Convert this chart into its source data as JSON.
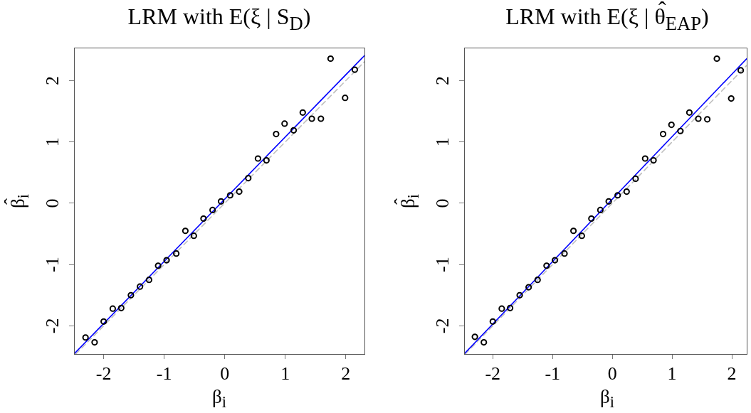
{
  "chart_data": [
    {
      "type": "scatter",
      "title": "LRM with E(ξ | S$_{D}$)",
      "xlabel": "β$_{i}$",
      "ylabel": "β̂$_{i}$",
      "xlim": [
        -2.49,
        2.31
      ],
      "ylim": [
        -2.46,
        2.54
      ],
      "xticks": [
        -2,
        -1,
        0,
        1,
        2
      ],
      "yticks": [
        -2,
        -1,
        0,
        1,
        2
      ],
      "grid": false,
      "legend": false,
      "x": [
        -2.3,
        -2.15,
        -2.0,
        -1.85,
        -1.71,
        -1.55,
        -1.4,
        -1.25,
        -1.1,
        -0.96,
        -0.8,
        -0.65,
        -0.51,
        -0.35,
        -0.2,
        -0.06,
        0.09,
        0.24,
        0.39,
        0.55,
        0.69,
        0.85,
        0.99,
        1.14,
        1.29,
        1.44,
        1.59,
        1.75,
        1.99,
        2.15
      ],
      "series": [
        {
          "color": "#000000",
          "marker": "circle",
          "values": [
            -2.19,
            -2.27,
            -1.93,
            -1.72,
            -1.71,
            -1.5,
            -1.36,
            -1.25,
            -1.02,
            -0.93,
            -0.82,
            -0.45,
            -0.53,
            -0.25,
            -0.11,
            0.03,
            0.13,
            0.19,
            0.41,
            0.73,
            0.7,
            1.13,
            1.3,
            1.19,
            1.48,
            1.38,
            1.38,
            2.36,
            1.72,
            2.18
          ]
        },
        {
          "type": "line",
          "color": "#0000ff",
          "x": [
            -2.49,
            2.31
          ],
          "values": [
            -2.46,
            2.41
          ]
        },
        {
          "type": "line",
          "color": "#bebebe",
          "line_style": "dashed",
          "x": [
            -2.46,
            2.31
          ],
          "values": [
            -2.46,
            2.31
          ]
        }
      ]
    },
    {
      "type": "scatter",
      "title": "LRM with E(ξ | θ̂$_{EAP}$)",
      "xlabel": "β$_{i}$",
      "ylabel": "β̂$_{i}$",
      "xlim": [
        -2.48,
        2.25
      ],
      "ylim": [
        -2.46,
        2.54
      ],
      "xticks": [
        -2,
        -1,
        0,
        1,
        2
      ],
      "yticks": [
        -2,
        -1,
        0,
        1,
        2
      ],
      "grid": false,
      "legend": false,
      "x": [
        -2.3,
        -2.15,
        -2.0,
        -1.85,
        -1.71,
        -1.55,
        -1.4,
        -1.25,
        -1.1,
        -0.96,
        -0.8,
        -0.65,
        -0.51,
        -0.35,
        -0.2,
        -0.06,
        0.09,
        0.24,
        0.39,
        0.55,
        0.69,
        0.85,
        0.99,
        1.14,
        1.29,
        1.44,
        1.59,
        1.75,
        1.99,
        2.15
      ],
      "series": [
        {
          "color": "#000000",
          "marker": "circle",
          "values": [
            -2.18,
            -2.27,
            -1.93,
            -1.72,
            -1.71,
            -1.5,
            -1.37,
            -1.25,
            -1.02,
            -0.93,
            -0.82,
            -0.45,
            -0.53,
            -0.25,
            -0.11,
            0.03,
            0.13,
            0.19,
            0.4,
            0.73,
            0.7,
            1.13,
            1.28,
            1.18,
            1.48,
            1.38,
            1.37,
            2.36,
            1.71,
            2.17
          ]
        },
        {
          "type": "line",
          "color": "#0000ff",
          "x": [
            -2.48,
            2.25
          ],
          "values": [
            -2.46,
            2.36
          ]
        },
        {
          "type": "line",
          "color": "#bebebe",
          "line_style": "dashed",
          "x": [
            -2.46,
            2.25
          ],
          "values": [
            -2.46,
            2.25
          ]
        }
      ]
    }
  ]
}
